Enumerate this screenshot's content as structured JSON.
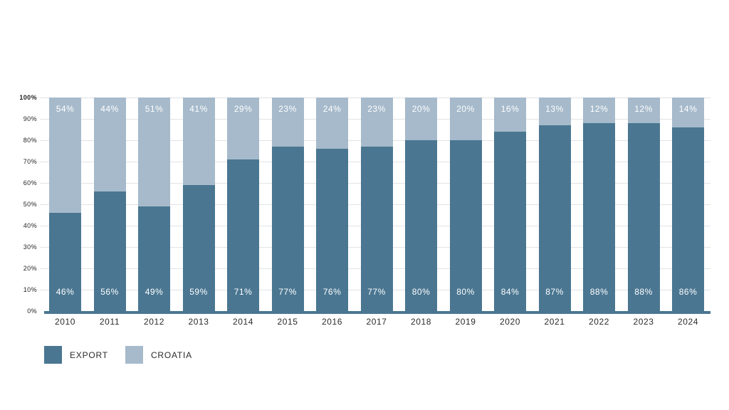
{
  "chart_data": {
    "type": "bar",
    "stacked": true,
    "title": "",
    "categories": [
      "2010",
      "2011",
      "2012",
      "2013",
      "2014",
      "2015",
      "2016",
      "2017",
      "2018",
      "2019",
      "2020",
      "2021",
      "2022",
      "2023",
      "2024"
    ],
    "series": [
      {
        "name": "EXPORT",
        "color": "#4A7691",
        "values": [
          46,
          56,
          49,
          59,
          71,
          77,
          76,
          77,
          80,
          80,
          84,
          87,
          88,
          88,
          86
        ]
      },
      {
        "name": "CROATIA",
        "color": "#A6BACB",
        "values": [
          54,
          44,
          51,
          41,
          29,
          23,
          24,
          23,
          20,
          20,
          16,
          13,
          12,
          12,
          14
        ]
      }
    ],
    "value_label_suffix": "%",
    "xlabel": "",
    "ylabel": "",
    "ylim": [
      0,
      100
    ],
    "yticks": [
      "0%",
      "10%",
      "20%",
      "30%",
      "40%",
      "50%",
      "60%",
      "70%",
      "80%",
      "90%",
      "100%"
    ],
    "grid": true,
    "gridline_color": "#e0e3e6",
    "axis_line_color": "#4A7691",
    "legend_position": "bottom-left",
    "legend": [
      {
        "label": "EXPORT",
        "color": "#4A7691"
      },
      {
        "label": "CROATIA",
        "color": "#A6BACB"
      }
    ]
  }
}
